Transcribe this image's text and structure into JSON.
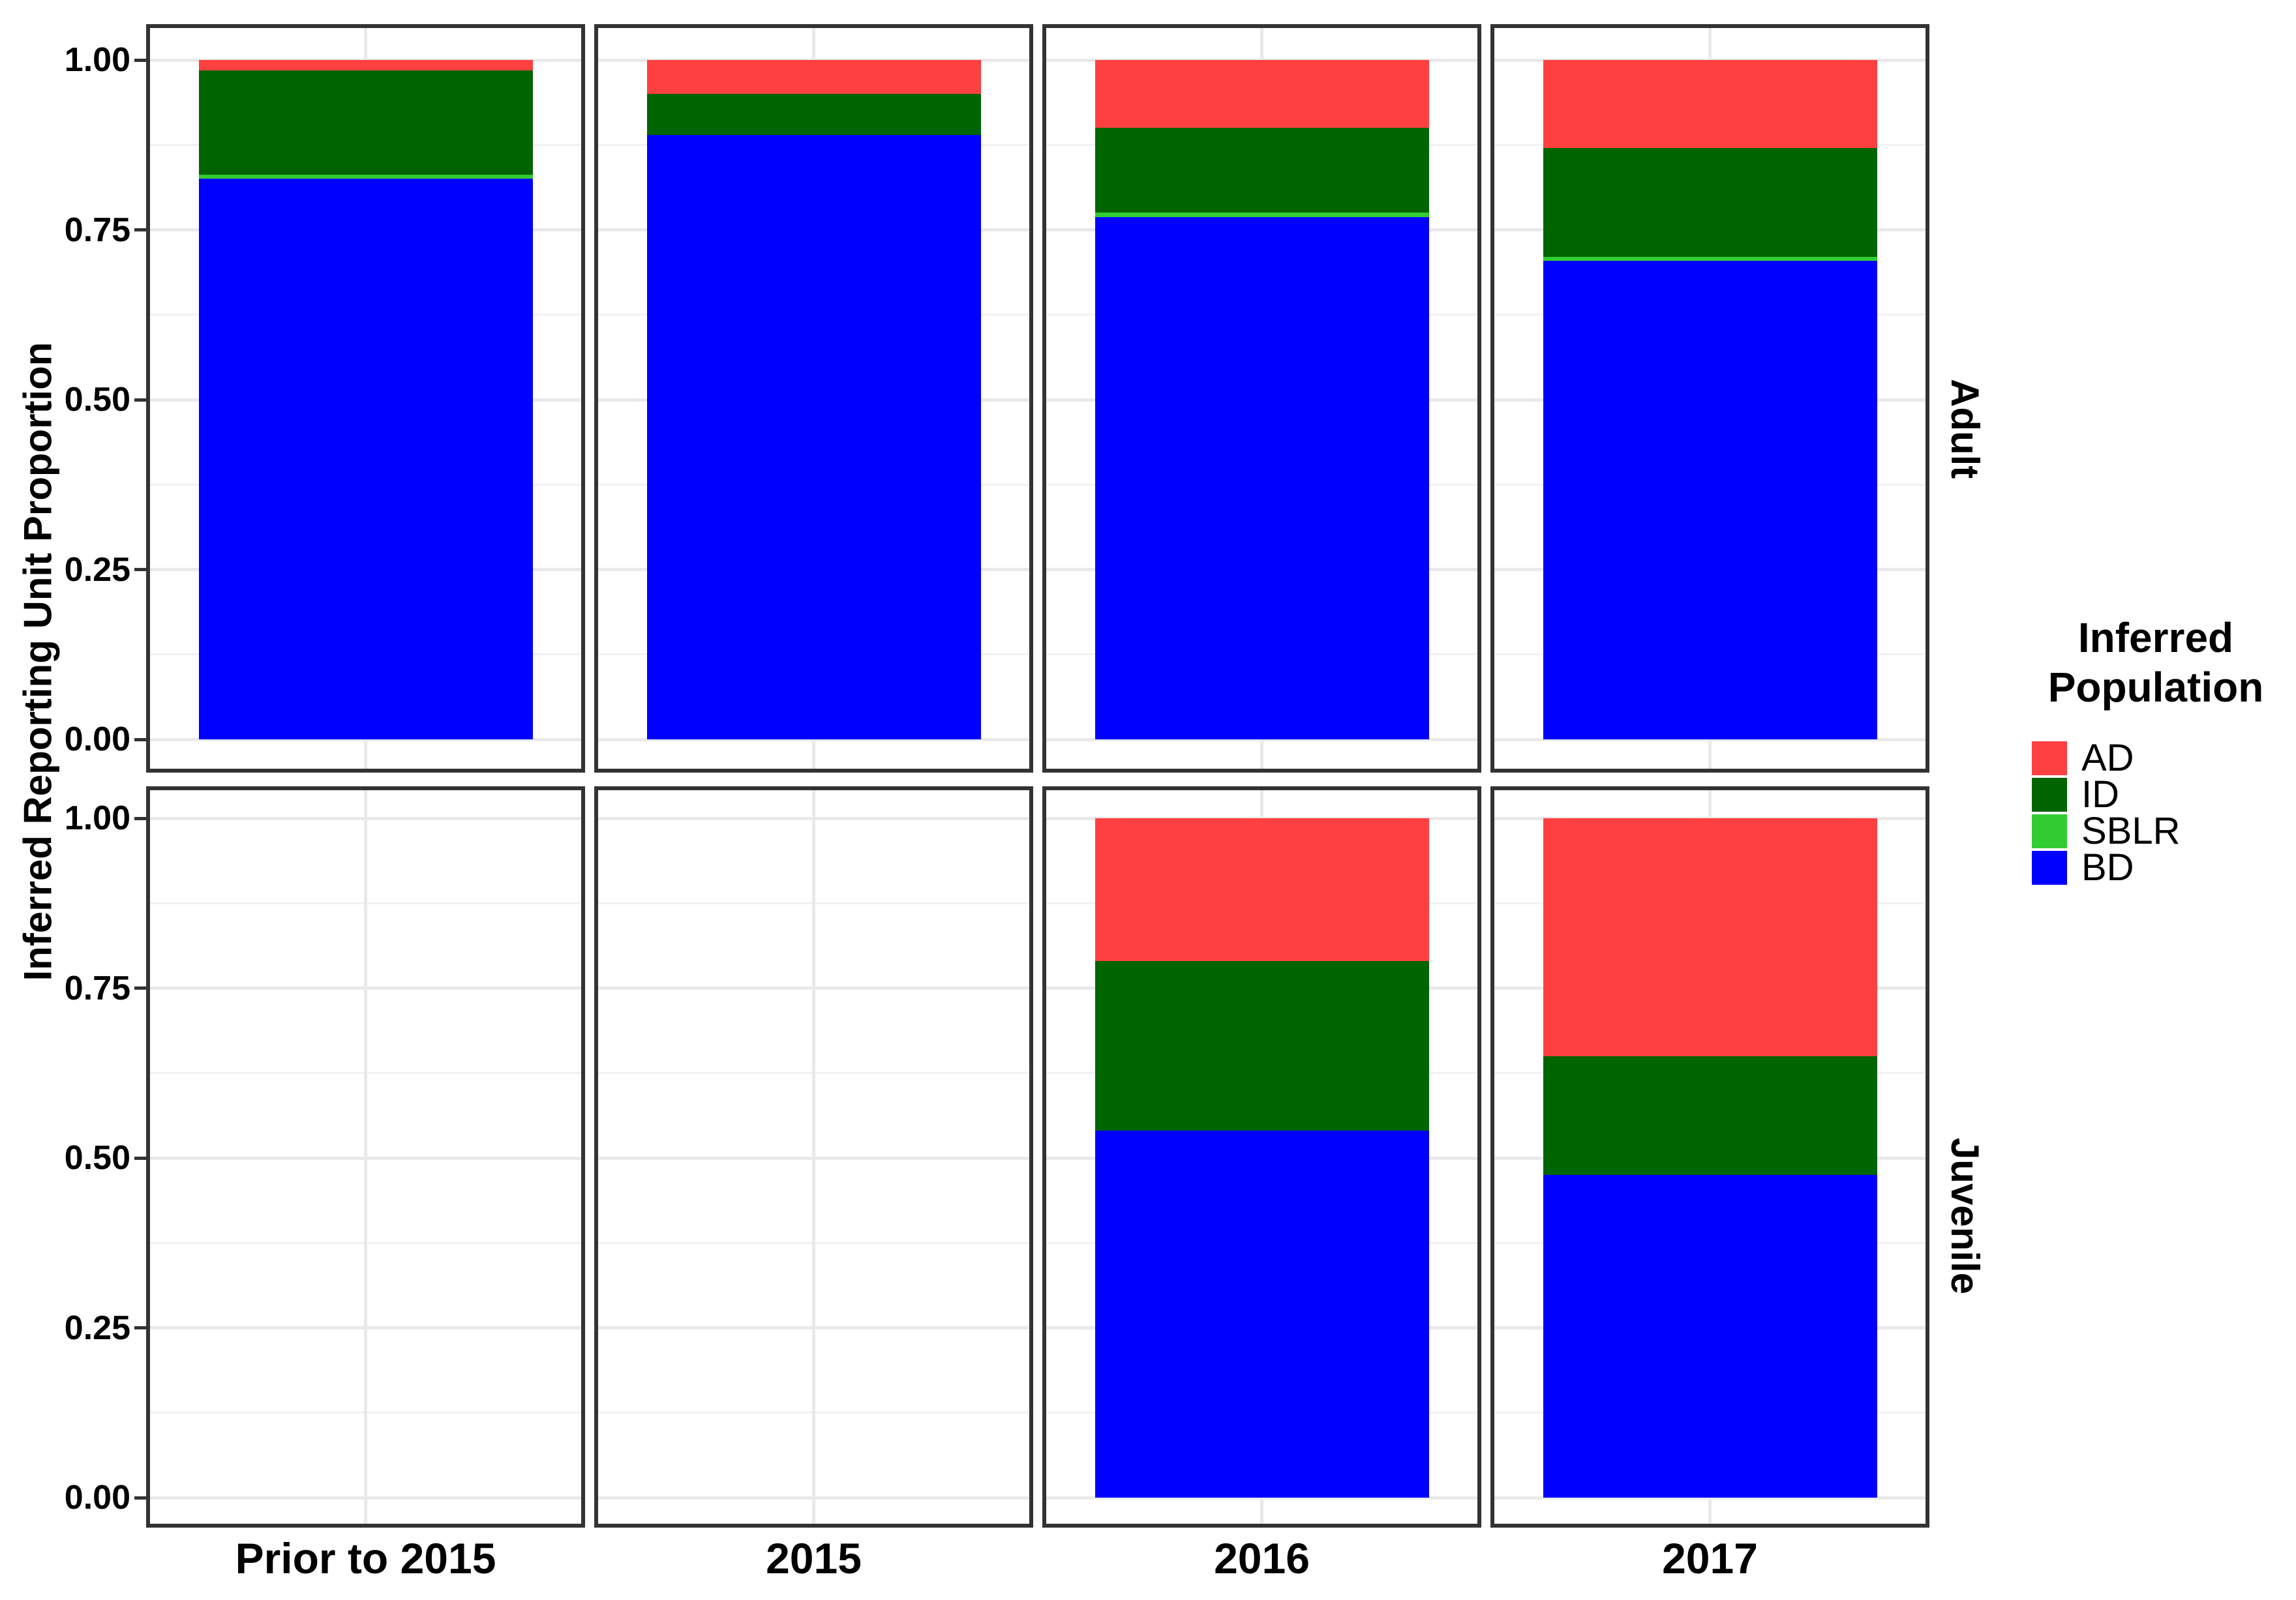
{
  "chart_data": {
    "type": "bar",
    "stacked": true,
    "ylabel": "Inferred Reporting Unit Proportion",
    "ylim": [
      0,
      1
    ],
    "yticks": [
      "1.00",
      "0.75",
      "0.50",
      "0.25",
      "0.00"
    ],
    "ytick_values": [
      1.0,
      0.75,
      0.5,
      0.25,
      0.0
    ],
    "grid": "on",
    "categories": [
      "Prior to 2015",
      "2015",
      "2016",
      "2017"
    ],
    "facet_rows": [
      "Adult",
      "Juvenile"
    ],
    "legend": {
      "title_lines": [
        "Inferred",
        "Population"
      ],
      "position": "right",
      "entries": [
        {
          "label": "AD",
          "color": "#FF4040"
        },
        {
          "label": "ID",
          "color": "#006400"
        },
        {
          "label": "SBLR",
          "color": "#32CD32"
        },
        {
          "label": "BD",
          "color": "#0000FF"
        }
      ]
    },
    "stack_order_bottom_to_top": [
      "BD",
      "SBLR",
      "ID",
      "AD"
    ],
    "series_colors": {
      "AD": "#FF4040",
      "ID": "#006400",
      "SBLR": "#32CD32",
      "BD": "#0000FF"
    },
    "panels": [
      {
        "facet": "Adult",
        "bars": [
          {
            "category": "Prior to 2015",
            "values": {
              "BD": 0.825,
              "SBLR": 0.006,
              "ID": 0.154,
              "AD": 0.015
            }
          },
          {
            "category": "2015",
            "values": {
              "BD": 0.89,
              "SBLR": 0.0,
              "ID": 0.06,
              "AD": 0.05
            }
          },
          {
            "category": "2016",
            "values": {
              "BD": 0.769,
              "SBLR": 0.006,
              "ID": 0.125,
              "AD": 0.1
            }
          },
          {
            "category": "2017",
            "values": {
              "BD": 0.704,
              "SBLR": 0.006,
              "ID": 0.16,
              "AD": 0.13
            }
          }
        ]
      },
      {
        "facet": "Juvenile",
        "bars": [
          {
            "category": "Prior to 2015",
            "values": null
          },
          {
            "category": "2015",
            "values": null
          },
          {
            "category": "2016",
            "values": {
              "BD": 0.54,
              "SBLR": 0.0,
              "ID": 0.25,
              "AD": 0.21
            }
          },
          {
            "category": "2017",
            "values": {
              "BD": 0.475,
              "SBLR": 0.0,
              "ID": 0.175,
              "AD": 0.35
            }
          }
        ]
      }
    ]
  }
}
